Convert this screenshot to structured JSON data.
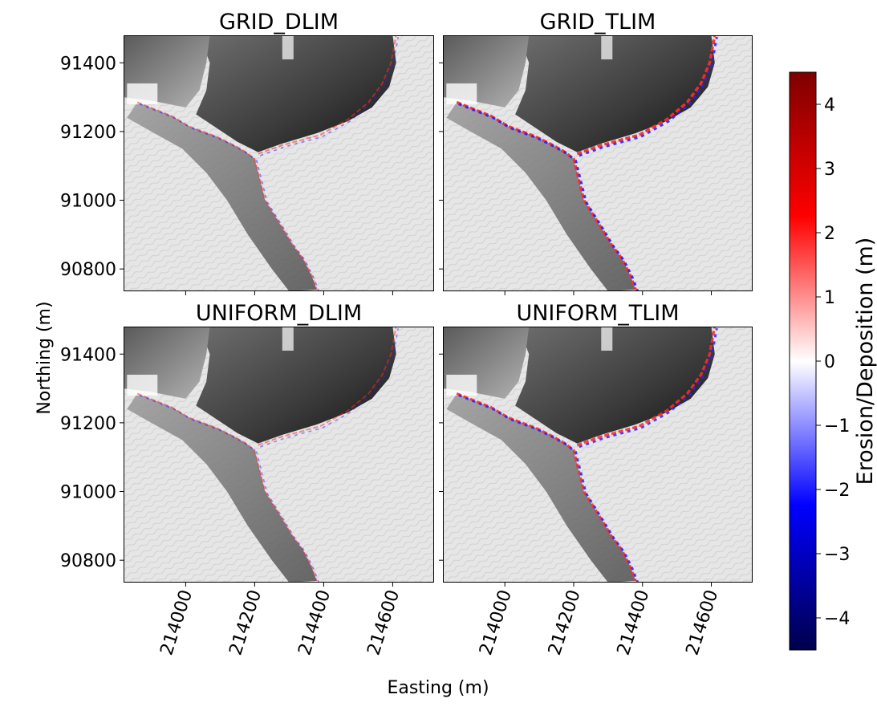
{
  "chart_data": {
    "type": "heatmap",
    "description_units": "Elevation-change maps over hillshade, x = Easting (m), y = Northing (m)",
    "shared_axes": {
      "xlabel": "Easting (m)",
      "ylabel": "Northing (m)",
      "xlim": [
        213820,
        214720
      ],
      "ylim": [
        90735,
        91480
      ],
      "xticks": [
        214000,
        214200,
        214400,
        214600
      ],
      "xtick_labels": [
        "214000",
        "214200",
        "214400",
        "214600"
      ],
      "yticks": [
        90800,
        91000,
        91200,
        91400
      ],
      "ytick_labels": [
        "90800",
        "91000",
        "91200",
        "91400"
      ]
    },
    "panels": [
      {
        "title": "GRID_DLIM",
        "intensity": 0.35
      },
      {
        "title": "GRID_TLIM",
        "intensity": 1.0
      },
      {
        "title": "UNIFORM_DLIM",
        "intensity": 0.3
      },
      {
        "title": "UNIFORM_TLIM",
        "intensity": 0.9
      }
    ],
    "features": {
      "ridge_boundary": [
        [
          213860,
          91285
        ],
        [
          213960,
          91245
        ],
        [
          214010,
          91215
        ],
        [
          214090,
          91185
        ],
        [
          214140,
          91160
        ],
        [
          214175,
          91140
        ],
        [
          214200,
          91120
        ],
        [
          214215,
          91060
        ],
        [
          214230,
          91000
        ],
        [
          214255,
          90960
        ],
        [
          214280,
          90920
        ],
        [
          214310,
          90870
        ],
        [
          214340,
          90830
        ],
        [
          214365,
          90780
        ],
        [
          214380,
          90740
        ]
      ],
      "cliff_edge": [
        [
          214210,
          91135
        ],
        [
          214280,
          91160
        ],
        [
          214390,
          91190
        ],
        [
          214470,
          91235
        ],
        [
          214530,
          91285
        ],
        [
          214570,
          91340
        ],
        [
          214595,
          91400
        ],
        [
          214610,
          91480
        ]
      ],
      "upper_ridge": [
        [
          214090,
          91480
        ],
        [
          214080,
          91420
        ],
        [
          214060,
          91350
        ],
        [
          214040,
          91300
        ],
        [
          214090,
          91260
        ],
        [
          214180,
          91230
        ],
        [
          214260,
          91210
        ],
        [
          214320,
          91200
        ]
      ]
    },
    "colorbar": {
      "label": "Erosion/Deposition (m)",
      "range": [
        -4.5,
        4.5
      ],
      "ticks": [
        -4,
        -3,
        -2,
        -1,
        0,
        1,
        2,
        3,
        4
      ],
      "tick_labels": [
        "−4",
        "−3",
        "−2",
        "−1",
        "0",
        "1",
        "2",
        "3",
        "4"
      ],
      "colormap": "seismic",
      "colors": [
        "#00004c",
        "#0000ff",
        "#ffffff",
        "#ff0000",
        "#7f0000"
      ]
    }
  }
}
